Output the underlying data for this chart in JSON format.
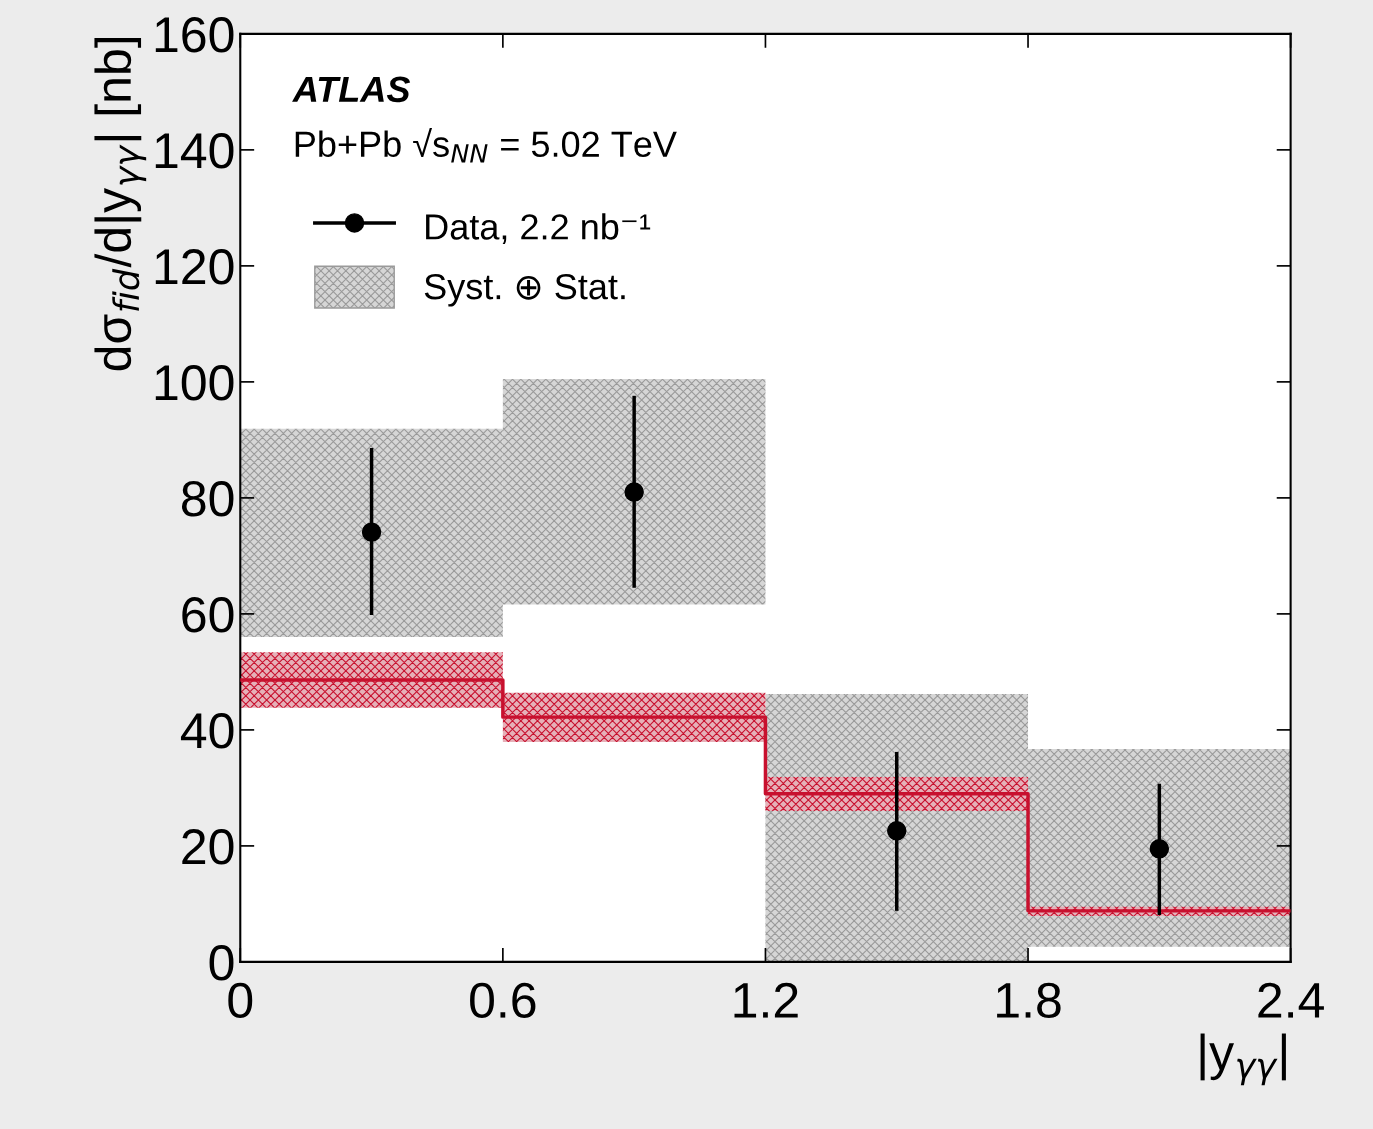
{
  "chart_data": {
    "type": "scatter",
    "xlabel": "|y$_{γγ}$|",
    "ylabel": "dσ$_{fid}$/d|y$_{γγ}$| [nb]",
    "annotations": [
      "ATLAS",
      "Pb+Pb √s$_{NN}$ = 5.02 TeV"
    ],
    "xlim": [
      0,
      2.4
    ],
    "xticks": [
      0,
      0.6,
      1.2,
      1.8,
      2.4
    ],
    "ylim": [
      0,
      160
    ],
    "yticks": [
      0,
      20,
      40,
      60,
      80,
      100,
      120,
      140,
      160
    ],
    "grid": false,
    "legend": "top left",
    "series": [
      {
        "name": "Syst. ⊕ Stat.",
        "type": "bar",
        "color": "#9a9a9a",
        "x": [
          0.3,
          0.9,
          1.5,
          2.1
        ],
        "base": [
          56.0,
          61.6,
          0,
          2.6
        ],
        "values": [
          35.9,
          38.9,
          46.2,
          34.1
        ]
      },
      {
        "type": "step",
        "color": "#c8102e",
        "x": [
          0,
          0.6,
          1.2,
          1.8,
          2.4
        ],
        "values": [
          48.6,
          42.2,
          29.0,
          8.8,
          8.8
        ],
        "lower": [
          43.8,
          37.9,
          26.0,
          7.9,
          7.9
        ],
        "upper": [
          53.4,
          46.4,
          31.9,
          9.5,
          9.5
        ]
      },
      {
        "name": "Data, 2.2 nb⁻¹",
        "color": "#000000",
        "marker": "circle",
        "x": [
          0.3,
          0.9,
          1.5,
          2.1
        ],
        "values": [
          74.1,
          81.0,
          22.6,
          19.5
        ],
        "errors": [
          [
            59.8,
            88.6
          ],
          [
            64.5,
            97.6
          ],
          [
            8.8,
            36.2
          ],
          [
            8.1,
            30.7
          ]
        ]
      }
    ]
  }
}
